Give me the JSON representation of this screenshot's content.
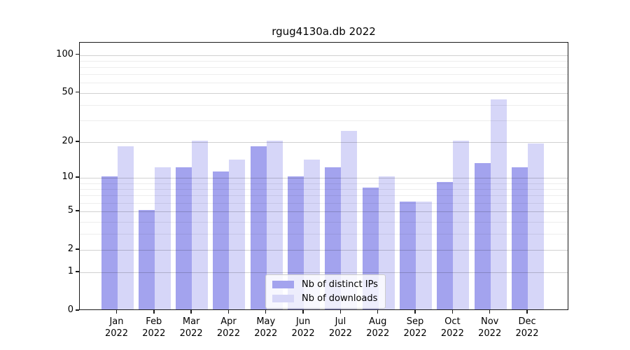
{
  "window": {
    "background": "#ffffff"
  },
  "chart_data": {
    "type": "bar",
    "title": "rgug4130a.db 2022",
    "xlabel": "",
    "ylabel": "",
    "categories": [
      "Jan",
      "Feb",
      "Mar",
      "Apr",
      "May",
      "Jun",
      "Jul",
      "Aug",
      "Sep",
      "Oct",
      "Nov",
      "Dec"
    ],
    "year_label": "2022",
    "series": [
      {
        "name": "Nb of distinct IPs",
        "color": "rgba(140,140,234,0.8)",
        "legend_color": "#a3a3ee",
        "values": [
          10,
          5,
          12,
          11,
          18,
          10,
          12,
          8,
          6,
          9,
          13,
          12
        ]
      },
      {
        "name": "Nb of downloads",
        "color": "rgba(204,204,246,0.8)",
        "legend_color": "#d6d6f7",
        "values": [
          18,
          12,
          20,
          14,
          20,
          14,
          24,
          10,
          6,
          20,
          43,
          19
        ]
      }
    ],
    "yscale": "log1p",
    "ylim": [
      0,
      125
    ],
    "yticks": [
      0,
      1,
      2,
      5,
      10,
      20,
      50,
      100
    ],
    "minor_gridlines": [
      3,
      4,
      6,
      7,
      8,
      9,
      30,
      40,
      60,
      70,
      80,
      90
    ],
    "grid": true,
    "legend_position": "lower center"
  }
}
